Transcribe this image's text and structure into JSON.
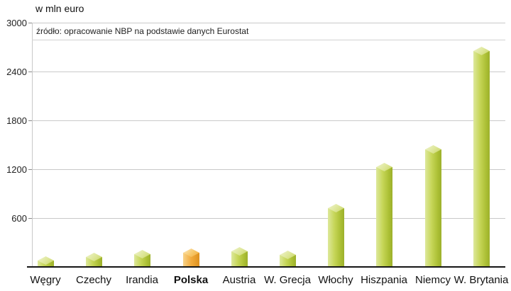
{
  "chart_data": {
    "type": "bar",
    "title": "w mln euro",
    "annotation": "źródło: opracowanie NBP na podstawie danych Eurostat",
    "categories": [
      "Węgry",
      "Czechy",
      "Irandia",
      "Polska",
      "Austria",
      "W. Grecja",
      "Włochy",
      "Hiszpania",
      "Niemcy",
      "W. Brytania"
    ],
    "values": [
      75,
      120,
      155,
      170,
      190,
      145,
      720,
      1230,
      1440,
      2650
    ],
    "highlight_category": "Polska",
    "bar_color": "#b9cc3e",
    "highlight_color": "#f0a52e",
    "xlabel": "",
    "ylabel": "w mln euro",
    "ylim": [
      0,
      3000
    ],
    "yticks": [
      600,
      1200,
      1800,
      2400,
      3000
    ],
    "grid": true,
    "legend": false
  }
}
